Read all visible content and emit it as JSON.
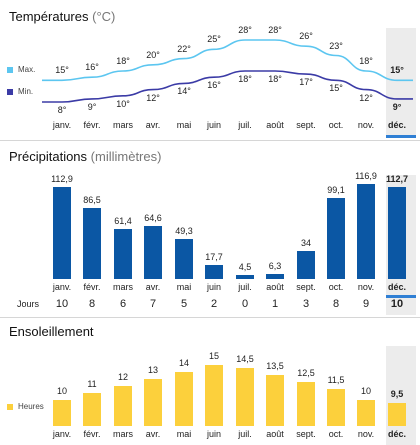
{
  "months": [
    "janv.",
    "févr.",
    "mars",
    "avr.",
    "mai",
    "juin",
    "juil.",
    "août",
    "sept.",
    "oct.",
    "nov.",
    "déc."
  ],
  "highlight_index": 11,
  "temperature": {
    "title": "Températures",
    "unit": "(°C)",
    "legend_max": "Max.",
    "legend_min": "Min.",
    "max_color": "#5cc6f0",
    "min_color": "#3b3ba6",
    "max_labels": [
      "15°",
      "16°",
      "18°",
      "20°",
      "22°",
      "25°",
      "28°",
      "28°",
      "26°",
      "23°",
      "18°",
      "15°"
    ],
    "min_labels": [
      "8°",
      "9°",
      "10°",
      "12°",
      "14°",
      "16°",
      "18°",
      "18°",
      "17°",
      "15°",
      "12°",
      "9°"
    ],
    "chart_data": {
      "type": "line",
      "categories": [
        "janv.",
        "févr.",
        "mars",
        "avr.",
        "mai",
        "juin",
        "juil.",
        "août",
        "sept.",
        "oct.",
        "nov.",
        "déc."
      ],
      "series": [
        {
          "name": "Max.",
          "values": [
            15,
            16,
            18,
            20,
            22,
            25,
            28,
            28,
            26,
            23,
            18,
            15
          ]
        },
        {
          "name": "Min.",
          "values": [
            8,
            9,
            10,
            12,
            14,
            16,
            18,
            18,
            17,
            15,
            12,
            9
          ]
        }
      ]
    }
  },
  "precipitation": {
    "title": "Précipitations",
    "unit": "(millimètres)",
    "bar_color": "#0b57a4",
    "value_labels": [
      "112,9",
      "86,5",
      "61,4",
      "64,6",
      "49,3",
      "17,7",
      "4,5",
      "6,3",
      "34",
      "99,1",
      "116,9",
      "112,7"
    ],
    "days_label": "Jours",
    "days": [
      "10",
      "8",
      "6",
      "7",
      "5",
      "2",
      "0",
      "1",
      "3",
      "8",
      "9",
      "10"
    ],
    "chart_data": {
      "type": "bar",
      "categories": [
        "janv.",
        "févr.",
        "mars",
        "avr.",
        "mai",
        "juin",
        "juil.",
        "août",
        "sept.",
        "oct.",
        "nov.",
        "déc."
      ],
      "values": [
        112.9,
        86.5,
        61.4,
        64.6,
        49.3,
        17.7,
        4.5,
        6.3,
        34,
        99.1,
        116.9,
        112.7
      ]
    }
  },
  "sunshine": {
    "title": "Ensoleillement",
    "legend": "Heures",
    "bar_color": "#fcd03c",
    "value_labels": [
      "10",
      "11",
      "12",
      "13",
      "14",
      "15",
      "14,5",
      "13,5",
      "12,5",
      "11,5",
      "10",
      "9,5"
    ],
    "chart_data": {
      "type": "bar",
      "categories": [
        "janv.",
        "févr.",
        "mars",
        "avr.",
        "mai",
        "juin",
        "juil.",
        "août",
        "sept.",
        "oct.",
        "nov.",
        "déc."
      ],
      "values": [
        10,
        11,
        12,
        13,
        14,
        15,
        14.5,
        13.5,
        12.5,
        11.5,
        10,
        9.5
      ]
    }
  }
}
